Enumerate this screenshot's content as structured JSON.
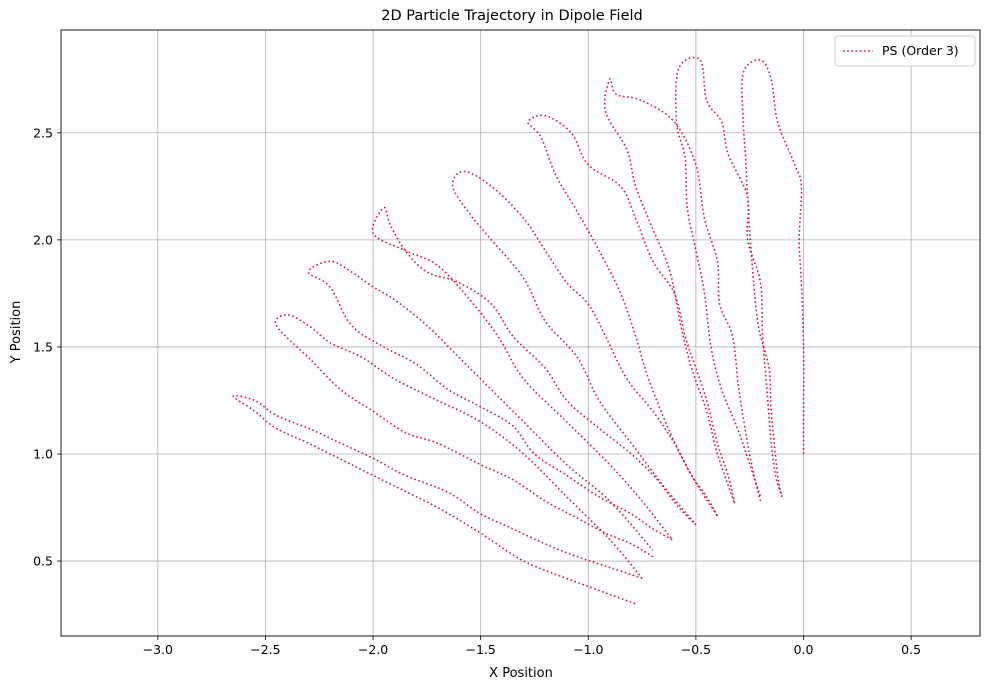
{
  "chart_data": {
    "type": "line",
    "title": "2D Particle Trajectory in Dipole Field",
    "xlabel": "X Position",
    "ylabel": "Y Position",
    "xlim": [
      -3.45,
      0.82
    ],
    "ylim": [
      0.15,
      2.98
    ],
    "xticks": [
      -3.0,
      -2.5,
      -2.0,
      -1.5,
      -1.0,
      -0.5,
      0.0,
      0.5
    ],
    "xtick_labels": [
      "−3.0",
      "−2.5",
      "−2.0",
      "−1.5",
      "−1.0",
      "−0.5",
      "0.0",
      "0.5"
    ],
    "yticks": [
      0.5,
      1.0,
      1.5,
      2.0,
      2.5
    ],
    "ytick_labels": [
      "0.5",
      "1.0",
      "1.5",
      "2.0",
      "2.5"
    ],
    "grid": true,
    "legend_position": "top-right",
    "series": [
      {
        "name": "PS (Order 3)",
        "color": "#dc143c",
        "style": "dotted",
        "segments": [
          [
            [
              0.0,
              1.0
            ],
            [
              0.0,
              1.2
            ],
            [
              0.0,
              1.5
            ],
            [
              -0.01,
              1.8
            ],
            [
              -0.02,
              2.0
            ],
            [
              -0.01,
              2.25
            ],
            [
              -0.04,
              2.35
            ],
            [
              -0.12,
              2.55
            ],
            [
              -0.15,
              2.75
            ],
            [
              -0.2,
              2.84
            ],
            [
              -0.28,
              2.78
            ],
            [
              -0.28,
              2.55
            ],
            [
              -0.27,
              2.4
            ],
            [
              -0.26,
              2.2
            ],
            [
              -0.24,
              1.9
            ],
            [
              -0.21,
              1.6
            ],
            [
              -0.16,
              1.4
            ],
            [
              -0.15,
              1.2
            ],
            [
              -0.12,
              0.9
            ],
            [
              -0.1,
              0.8
            ]
          ],
          [
            [
              -0.1,
              0.8
            ],
            [
              -0.13,
              0.9
            ],
            [
              -0.15,
              1.05
            ],
            [
              -0.17,
              1.3
            ],
            [
              -0.19,
              1.55
            ],
            [
              -0.2,
              1.8
            ],
            [
              -0.26,
              2.0
            ],
            [
              -0.26,
              2.2
            ],
            [
              -0.35,
              2.4
            ],
            [
              -0.38,
              2.55
            ],
            [
              -0.45,
              2.65
            ],
            [
              -0.48,
              2.84
            ],
            [
              -0.58,
              2.8
            ],
            [
              -0.59,
              2.55
            ],
            [
              -0.55,
              2.38
            ],
            [
              -0.54,
              2.15
            ],
            [
              -0.5,
              1.95
            ],
            [
              -0.46,
              1.75
            ],
            [
              -0.43,
              1.5
            ],
            [
              -0.38,
              1.3
            ],
            [
              -0.3,
              1.1
            ],
            [
              -0.2,
              0.8
            ]
          ],
          [
            [
              -0.2,
              0.78
            ],
            [
              -0.23,
              0.9
            ],
            [
              -0.26,
              1.05
            ],
            [
              -0.3,
              1.3
            ],
            [
              -0.33,
              1.55
            ],
            [
              -0.39,
              1.7
            ],
            [
              -0.4,
              1.9
            ],
            [
              -0.46,
              2.1
            ],
            [
              -0.5,
              2.35
            ],
            [
              -0.6,
              2.55
            ],
            [
              -0.75,
              2.65
            ],
            [
              -0.87,
              2.68
            ],
            [
              -0.9,
              2.75
            ],
            [
              -0.92,
              2.6
            ],
            [
              -0.82,
              2.42
            ],
            [
              -0.78,
              2.25
            ],
            [
              -0.7,
              2.05
            ],
            [
              -0.62,
              1.85
            ],
            [
              -0.57,
              1.6
            ],
            [
              -0.52,
              1.4
            ],
            [
              -0.45,
              1.2
            ],
            [
              -0.4,
              1.0
            ],
            [
              -0.32,
              0.77
            ]
          ],
          [
            [
              -0.32,
              0.77
            ],
            [
              -0.35,
              0.9
            ],
            [
              -0.4,
              1.05
            ],
            [
              -0.45,
              1.25
            ],
            [
              -0.5,
              1.4
            ],
            [
              -0.55,
              1.55
            ],
            [
              -0.6,
              1.75
            ],
            [
              -0.7,
              1.9
            ],
            [
              -0.78,
              2.1
            ],
            [
              -0.85,
              2.25
            ],
            [
              -1.0,
              2.35
            ],
            [
              -1.08,
              2.5
            ],
            [
              -1.2,
              2.58
            ],
            [
              -1.28,
              2.55
            ],
            [
              -1.22,
              2.48
            ],
            [
              -1.15,
              2.3
            ],
            [
              -1.05,
              2.13
            ],
            [
              -0.95,
              1.95
            ],
            [
              -0.85,
              1.75
            ],
            [
              -0.78,
              1.55
            ],
            [
              -0.72,
              1.35
            ],
            [
              -0.62,
              1.1
            ],
            [
              -0.52,
              0.9
            ],
            [
              -0.4,
              0.71
            ]
          ],
          [
            [
              -0.4,
              0.71
            ],
            [
              -0.45,
              0.8
            ],
            [
              -0.52,
              0.9
            ],
            [
              -0.6,
              1.05
            ],
            [
              -0.7,
              1.2
            ],
            [
              -0.82,
              1.35
            ],
            [
              -0.92,
              1.55
            ],
            [
              -1.0,
              1.7
            ],
            [
              -1.1,
              1.8
            ],
            [
              -1.2,
              1.95
            ],
            [
              -1.3,
              2.1
            ],
            [
              -1.45,
              2.25
            ],
            [
              -1.58,
              2.32
            ],
            [
              -1.63,
              2.25
            ],
            [
              -1.55,
              2.12
            ],
            [
              -1.45,
              2.0
            ],
            [
              -1.3,
              1.82
            ],
            [
              -1.2,
              1.62
            ],
            [
              -1.05,
              1.45
            ],
            [
              -0.95,
              1.25
            ],
            [
              -0.8,
              1.05
            ],
            [
              -0.65,
              0.85
            ],
            [
              -0.5,
              0.67
            ]
          ],
          [
            [
              -0.5,
              0.67
            ],
            [
              -0.58,
              0.75
            ],
            [
              -0.68,
              0.88
            ],
            [
              -0.8,
              1.0
            ],
            [
              -0.95,
              1.12
            ],
            [
              -1.1,
              1.25
            ],
            [
              -1.2,
              1.4
            ],
            [
              -1.35,
              1.55
            ],
            [
              -1.45,
              1.7
            ],
            [
              -1.6,
              1.8
            ],
            [
              -1.75,
              1.85
            ],
            [
              -1.85,
              1.95
            ],
            [
              -1.92,
              2.07
            ],
            [
              -1.95,
              2.15
            ],
            [
              -2.0,
              2.03
            ],
            [
              -1.85,
              1.95
            ],
            [
              -1.7,
              1.88
            ],
            [
              -1.55,
              1.72
            ],
            [
              -1.42,
              1.55
            ],
            [
              -1.3,
              1.35
            ],
            [
              -1.1,
              1.15
            ],
            [
              -0.9,
              0.95
            ],
            [
              -0.75,
              0.78
            ],
            [
              -0.61,
              0.6
            ]
          ],
          [
            [
              -0.61,
              0.6
            ],
            [
              -0.7,
              0.65
            ],
            [
              -0.8,
              0.72
            ],
            [
              -0.95,
              0.8
            ],
            [
              -1.1,
              0.9
            ],
            [
              -1.25,
              1.0
            ],
            [
              -1.35,
              1.13
            ],
            [
              -1.5,
              1.22
            ],
            [
              -1.65,
              1.3
            ],
            [
              -1.8,
              1.42
            ],
            [
              -1.95,
              1.5
            ],
            [
              -2.1,
              1.6
            ],
            [
              -2.2,
              1.78
            ],
            [
              -2.3,
              1.85
            ],
            [
              -2.2,
              1.9
            ],
            [
              -2.1,
              1.85
            ],
            [
              -2.0,
              1.78
            ],
            [
              -1.9,
              1.72
            ],
            [
              -1.75,
              1.6
            ],
            [
              -1.6,
              1.45
            ],
            [
              -1.45,
              1.3
            ],
            [
              -1.3,
              1.15
            ],
            [
              -1.1,
              0.95
            ],
            [
              -0.9,
              0.78
            ],
            [
              -0.7,
              0.55
            ]
          ],
          [
            [
              -0.7,
              0.52
            ],
            [
              -0.8,
              0.58
            ],
            [
              -0.92,
              0.63
            ],
            [
              -1.05,
              0.7
            ],
            [
              -1.2,
              0.78
            ],
            [
              -1.35,
              0.88
            ],
            [
              -1.5,
              0.95
            ],
            [
              -1.7,
              1.05
            ],
            [
              -1.85,
              1.1
            ],
            [
              -2.0,
              1.2
            ],
            [
              -2.15,
              1.3
            ],
            [
              -2.3,
              1.45
            ],
            [
              -2.45,
              1.6
            ],
            [
              -2.4,
              1.65
            ],
            [
              -2.3,
              1.6
            ],
            [
              -2.2,
              1.52
            ],
            [
              -2.05,
              1.45
            ],
            [
              -1.9,
              1.35
            ],
            [
              -1.7,
              1.25
            ],
            [
              -1.5,
              1.15
            ],
            [
              -1.3,
              1.0
            ],
            [
              -1.1,
              0.8
            ],
            [
              -0.9,
              0.6
            ],
            [
              -0.75,
              0.42
            ]
          ],
          [
            [
              -0.75,
              0.42
            ],
            [
              -0.9,
              0.47
            ],
            [
              -1.05,
              0.52
            ],
            [
              -1.2,
              0.58
            ],
            [
              -1.35,
              0.65
            ],
            [
              -1.5,
              0.72
            ],
            [
              -1.65,
              0.82
            ],
            [
              -1.85,
              0.9
            ],
            [
              -2.0,
              0.98
            ],
            [
              -2.15,
              1.05
            ],
            [
              -2.3,
              1.12
            ],
            [
              -2.45,
              1.18
            ],
            [
              -2.55,
              1.25
            ],
            [
              -2.65,
              1.27
            ],
            [
              -2.55,
              1.2
            ],
            [
              -2.45,
              1.12
            ],
            [
              -2.3,
              1.05
            ],
            [
              -2.1,
              0.95
            ],
            [
              -1.9,
              0.85
            ],
            [
              -1.7,
              0.75
            ],
            [
              -1.5,
              0.63
            ],
            [
              -1.3,
              0.5
            ],
            [
              -1.05,
              0.4
            ],
            [
              -0.78,
              0.3
            ]
          ]
        ]
      }
    ]
  }
}
